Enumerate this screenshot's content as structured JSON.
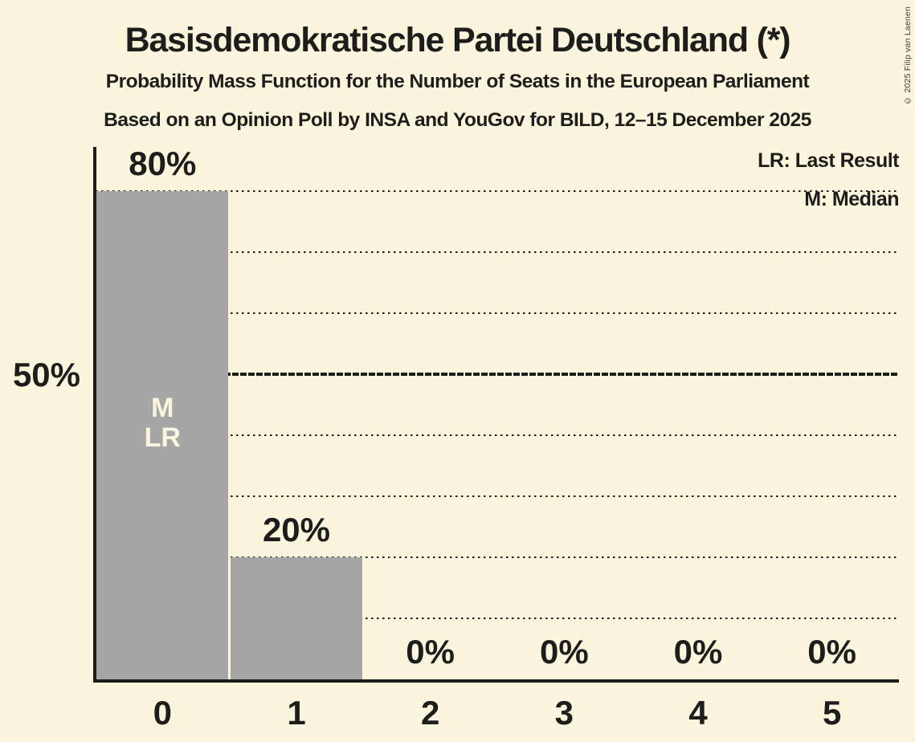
{
  "chart_data": {
    "type": "bar",
    "title": "Basisdemokratische Partei Deutschland (*)",
    "subtitle": "Probability Mass Function for the Number of Seats in the European Parliament",
    "source_line": "Based on an Opinion Poll by INSA and YouGov for BILD, 12–15 December 2025",
    "copyright": "© 2025 Filip van Laenen",
    "xlabel": "",
    "ylabel": "",
    "categories": [
      "0",
      "1",
      "2",
      "3",
      "4",
      "5"
    ],
    "values": [
      80,
      20,
      0,
      0,
      0,
      0
    ],
    "value_labels": [
      "80%",
      "20%",
      "0%",
      "0%",
      "0%",
      "0%"
    ],
    "ylim": [
      0,
      87
    ],
    "grid": true,
    "gridlines": [
      {
        "percent": 10,
        "style": "dotted"
      },
      {
        "percent": 20,
        "style": "dotted"
      },
      {
        "percent": 30,
        "style": "dotted"
      },
      {
        "percent": 40,
        "style": "dotted"
      },
      {
        "percent": 50,
        "style": "dashed-bold"
      },
      {
        "percent": 60,
        "style": "dotted"
      },
      {
        "percent": 70,
        "style": "dotted"
      },
      {
        "percent": 80,
        "style": "dotted"
      }
    ],
    "y_ticks": [
      {
        "percent": 50,
        "label": "50%"
      }
    ],
    "legend": {
      "position": "top-right",
      "entries": [
        {
          "label": "LR: Last Result"
        },
        {
          "label": "M: Median"
        }
      ]
    },
    "annotations": [
      {
        "category": "0",
        "lines": [
          "M",
          "LR"
        ]
      }
    ],
    "colors": {
      "background": "#FBF5DE",
      "bar": "#A6A6A6",
      "text": "#1D1D1B",
      "bar_label": "#FBF5DE"
    }
  }
}
